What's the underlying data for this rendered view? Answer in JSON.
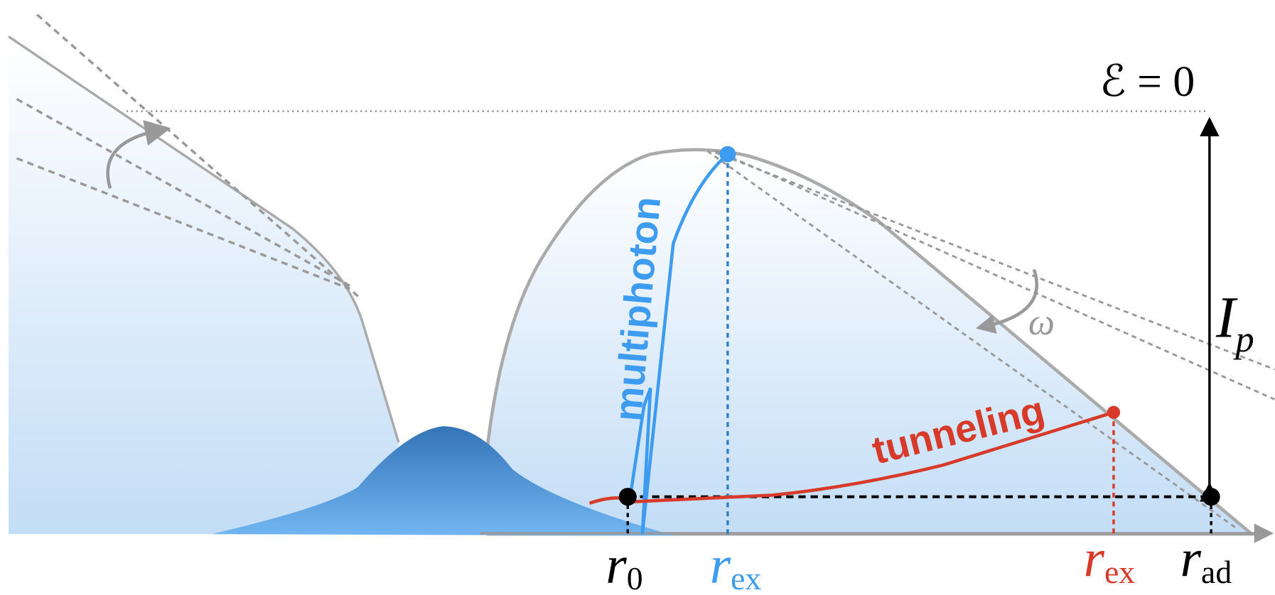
{
  "labels": {
    "energy_zero": "ℰ = 0",
    "ionization_potential": {
      "symbol": "I",
      "subscript": "p"
    },
    "frequency": "ω",
    "multiphoton": "multiphoton",
    "tunneling": "tunneling"
  },
  "axis_labels": [
    {
      "symbol": "r",
      "subscript": "0"
    },
    {
      "symbol": "r",
      "subscript": "ex"
    },
    {
      "symbol": "r",
      "subscript": "ex"
    },
    {
      "symbol": "r",
      "subscript": "ad"
    }
  ]
}
